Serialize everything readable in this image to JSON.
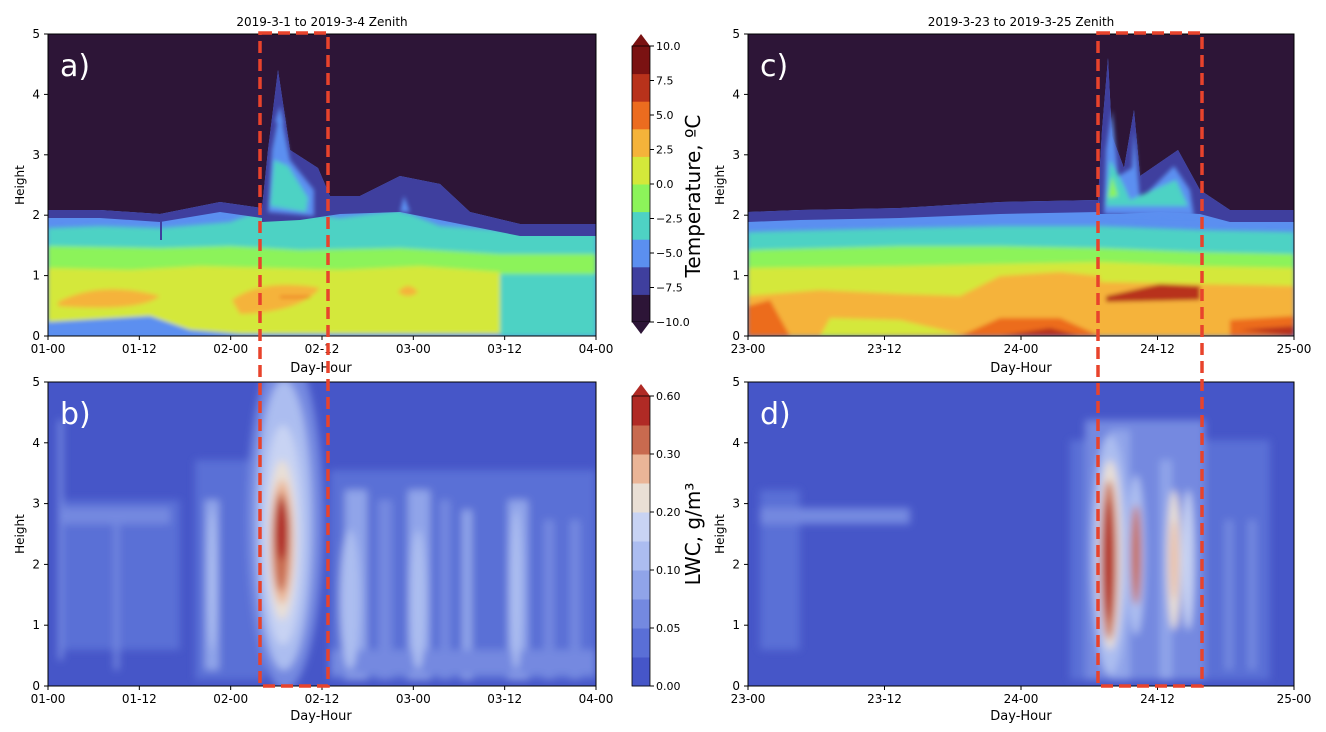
{
  "chart_data": [
    {
      "type": "heatmap",
      "panel": "a)",
      "title": "2019-3-1 to 2019-3-4 Zenith",
      "xlabel": "Day-Hour",
      "ylabel": "Height",
      "xticks": [
        "01-00",
        "01-12",
        "02-00",
        "02-12",
        "03-00",
        "03-12",
        "04-00"
      ],
      "yticks": [
        "0",
        "1",
        "2",
        "3",
        "4",
        "5"
      ],
      "ylim": [
        0,
        5
      ],
      "variable": "temperature",
      "highlight_box": {
        "from": "02-05",
        "to": "02-11"
      }
    },
    {
      "type": "heatmap",
      "panel": "b)",
      "title": "",
      "xlabel": "Day-Hour",
      "ylabel": "Height",
      "xticks": [
        "01-00",
        "01-12",
        "02-00",
        "02-12",
        "03-00",
        "03-12",
        "04-00"
      ],
      "yticks": [
        "0",
        "1",
        "2",
        "3",
        "4",
        "5"
      ],
      "ylim": [
        0,
        5
      ],
      "variable": "lwc",
      "highlight_box": {
        "from": "02-05",
        "to": "02-11"
      }
    },
    {
      "type": "heatmap",
      "panel": "c)",
      "title": "2019-3-23 to 2019-3-25 Zenith",
      "xlabel": "Day-Hour",
      "ylabel": "Height",
      "xticks": [
        "23-00",
        "23-12",
        "24-00",
        "24-12",
        "25-00"
      ],
      "yticks": [
        "0",
        "1",
        "2",
        "3",
        "4",
        "5"
      ],
      "ylim": [
        0,
        5
      ],
      "variable": "temperature",
      "highlight_box": {
        "from": "24-07",
        "to": "24-18"
      }
    },
    {
      "type": "heatmap",
      "panel": "d)",
      "title": "",
      "xlabel": "Day-Hour",
      "ylabel": "Height",
      "xticks": [
        "23-00",
        "23-12",
        "24-00",
        "24-12",
        "25-00"
      ],
      "yticks": [
        "0",
        "1",
        "2",
        "3",
        "4",
        "5"
      ],
      "ylim": [
        0,
        5
      ],
      "variable": "lwc",
      "highlight_box": {
        "from": "24-07",
        "to": "24-18"
      }
    }
  ],
  "colorbars": {
    "temperature": {
      "label": "Temperature, ºC",
      "ticks": [
        "10.0",
        "7.5",
        "5.0",
        "2.5",
        "0.0",
        "−2.5",
        "−5.0",
        "−7.5",
        "−10.0"
      ],
      "colors": [
        "#2d1537",
        "#3f3f9e",
        "#5b8ff0",
        "#4ed2c4",
        "#8cf35a",
        "#d4e83a",
        "#f5b33a",
        "#ec6c1f",
        "#b8321b",
        "#7a1212"
      ]
    },
    "lwc": {
      "label": "LWC, g/m³",
      "ticks": [
        "0.60",
        "0.30",
        "0.20",
        "0.10",
        "0.05",
        "0.00"
      ],
      "colors": [
        "#4656c8",
        "#5a6fd6",
        "#7489e0",
        "#90a4e9",
        "#acbdf0",
        "#c8d3f3",
        "#e9dfd5",
        "#eab597",
        "#c86a4f",
        "#b02a25"
      ]
    }
  },
  "highlight_color": "#e8432c"
}
